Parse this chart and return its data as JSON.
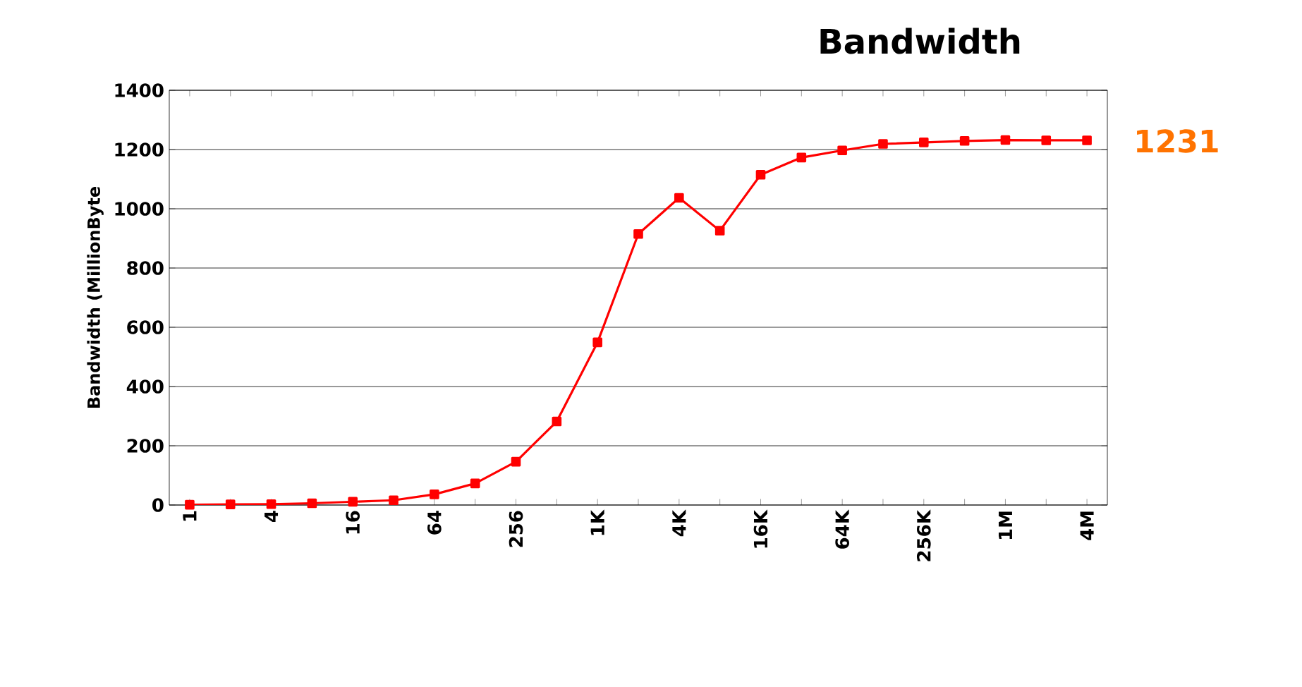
{
  "chart_data": {
    "type": "line",
    "title": "Bandwidth",
    "ylabel": "Bandwidth (MillionByte",
    "categories": [
      "1",
      null,
      "4",
      null,
      "16",
      null,
      "64",
      null,
      "256",
      null,
      "1K",
      null,
      "4K",
      null,
      "16K",
      null,
      "64K",
      null,
      "256K",
      null,
      "1M",
      null,
      "4M"
    ],
    "series": [
      {
        "color": "#ff0000",
        "values": [
          1,
          2,
          3,
          6,
          11,
          16,
          36,
          73,
          146,
          282,
          549,
          915,
          1037,
          926,
          1115,
          1173,
          1197,
          1219,
          1224,
          1229,
          1232,
          1231,
          1231
        ]
      }
    ],
    "ylim": [
      0,
      1400
    ],
    "yticks": [
      0,
      200,
      400,
      600,
      800,
      1000,
      1200,
      1400
    ],
    "grid": "y",
    "marker": "square",
    "line_style": "solid",
    "annotations": [
      "1231"
    ]
  }
}
